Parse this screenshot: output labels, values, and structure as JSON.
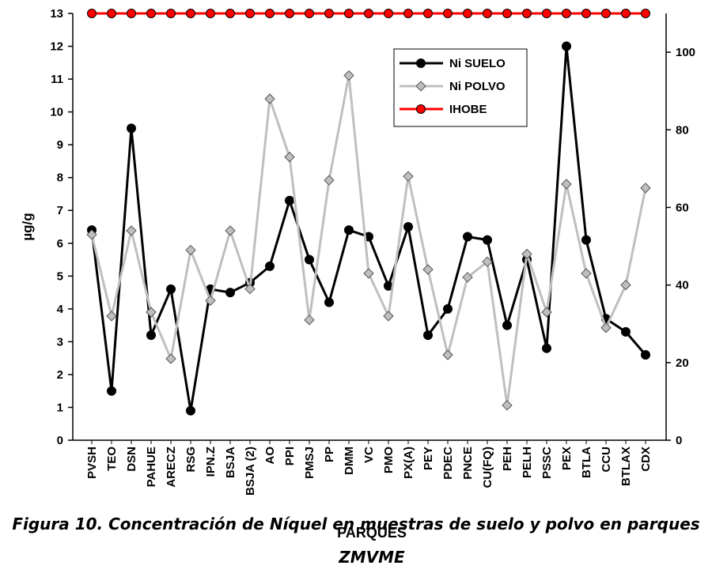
{
  "chart_data": {
    "type": "line",
    "caption": "Figura 10. Concentración de Níquel en muestras de suelo y polvo en parques",
    "caption_line2": "ZMVME",
    "xlabel": "PARQUES",
    "ylabel": "µg/g",
    "categories": [
      "PVSH",
      "TEO",
      "DSN",
      "PAHUE",
      "ARECZ",
      "RSG",
      "IPN.Z",
      "BSJA",
      "BSJA (2)",
      "AO",
      "PPI",
      "PMSJ",
      "PP",
      "DMM",
      "VC",
      "PMO",
      "PX(A)",
      "PEY",
      "PDEC",
      "PNCE",
      "CU(FQ)",
      "PEH",
      "PELH",
      "PSSC",
      "PEX",
      "BTLA",
      "CCU",
      "BTLAX",
      "CDX"
    ],
    "ylim": [
      0,
      13
    ],
    "yticks": [
      0,
      1,
      2,
      3,
      4,
      5,
      6,
      7,
      8,
      9,
      10,
      11,
      12,
      13
    ],
    "y2lim": [
      0,
      110
    ],
    "y2ticks": [
      0,
      20,
      40,
      60,
      80,
      100
    ],
    "series": [
      {
        "name": "Ni SUELO",
        "color": "#000000",
        "marker": "circle",
        "values": [
          6.4,
          1.5,
          9.5,
          3.2,
          4.6,
          0.9,
          4.6,
          4.5,
          4.8,
          5.3,
          7.3,
          5.5,
          4.2,
          6.4,
          6.2,
          4.7,
          6.5,
          3.2,
          4.0,
          6.2,
          6.1,
          3.5,
          5.5,
          2.8,
          12.0,
          6.1,
          3.7,
          3.3,
          2.6
        ]
      },
      {
        "name": "Ni POLVO",
        "color": "#bfbfbf",
        "marker": "diamond",
        "axis": "y2",
        "values": [
          53,
          32,
          54,
          33,
          21,
          49,
          36,
          54,
          39,
          88,
          73,
          31,
          67,
          94,
          43,
          32,
          68,
          44,
          22,
          42,
          46,
          9,
          48,
          33,
          66,
          43,
          29,
          40,
          65
        ]
      },
      {
        "name": "IHOBE",
        "color": "#ff0000",
        "marker": "circle",
        "axis": "y2",
        "values": [
          110,
          110,
          110,
          110,
          110,
          110,
          110,
          110,
          110,
          110,
          110,
          110,
          110,
          110,
          110,
          110,
          110,
          110,
          110,
          110,
          110,
          110,
          110,
          110,
          110,
          110,
          110,
          110,
          110
        ]
      }
    ]
  }
}
